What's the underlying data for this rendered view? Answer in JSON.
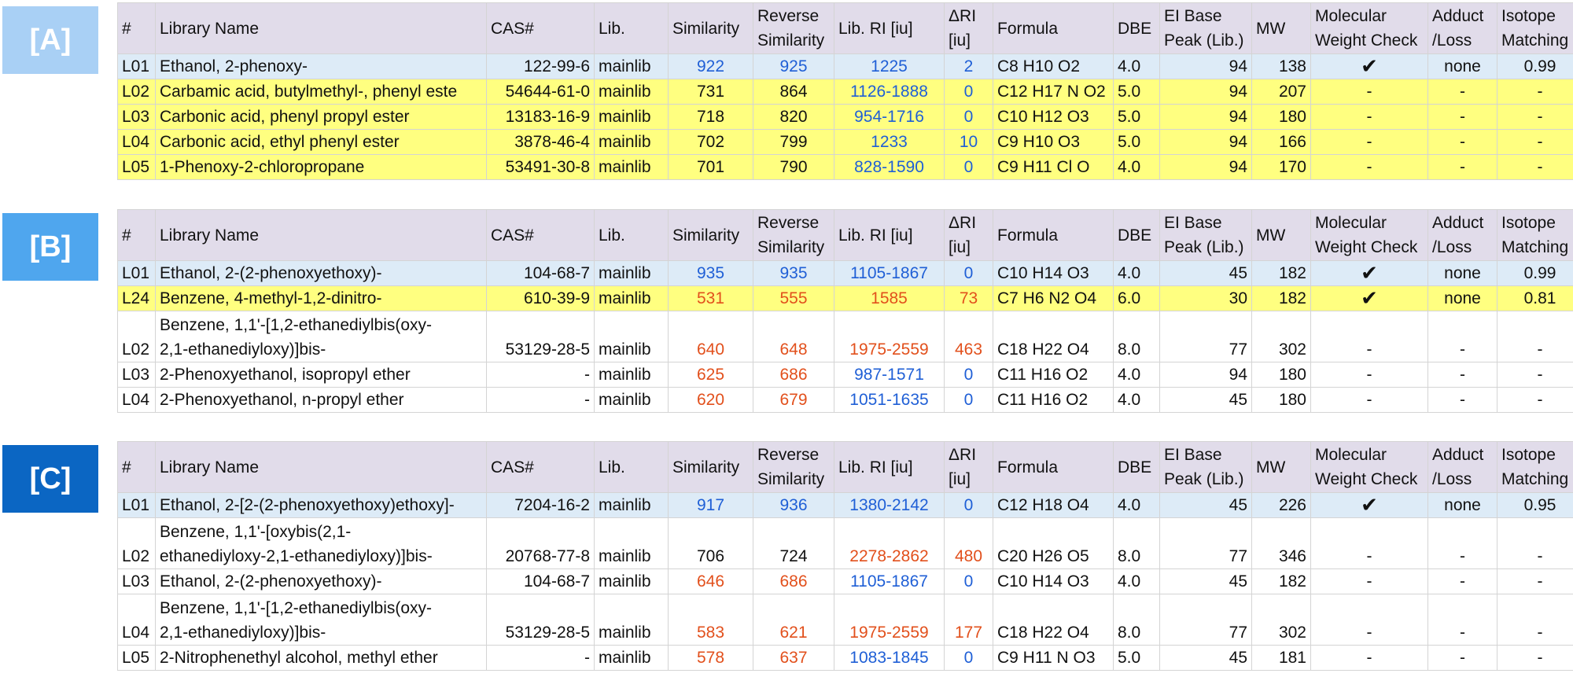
{
  "columns": [
    "#",
    "Library Name",
    "CAS#",
    "Lib.",
    "Similarity",
    "Reverse Similarity",
    "Lib. RI [iu]",
    "ΔRI [iu]",
    "Formula",
    "DBE",
    "EI Base Peak (Lib.)",
    "MW",
    "Molecular Weight Check",
    "Adduct /Loss",
    "Isotope Matching"
  ],
  "colors": {
    "blue": "#1f5fd6",
    "red": "#e2501c",
    "header_bg": "#e1dcea",
    "row_blue": "#ddebf7",
    "row_yellow": "#ffff80",
    "label_A": "#a9d0f5",
    "label_B": "#4fa6ee",
    "label_C": "#0b66c3"
  },
  "panels": [
    {
      "label": "[A]",
      "rows": [
        {
          "id": "L01",
          "name": "Ethanol, 2-phenoxy-",
          "cas": "122-99-6",
          "lib": "mainlib",
          "sim": "922",
          "rsim": "925",
          "ri": "1225",
          "dri": "2",
          "formula": "C8 H10 O2",
          "dbe": "4.0",
          "peak": "94",
          "mw": "138",
          "mwcheck": "✔",
          "adduct": "none",
          "iso": "0.99",
          "row": "blue",
          "sim_c": "blue",
          "rsim_c": "blue",
          "ri_c": "blue",
          "dri_c": "blue"
        },
        {
          "id": "L02",
          "name": "Carbamic acid, butylmethyl-, phenyl este",
          "cas": "54644-61-0",
          "lib": "mainlib",
          "sim": "731",
          "rsim": "864",
          "ri": "1126-1888",
          "dri": "0",
          "formula": "C12 H17 N O2",
          "dbe": "5.0",
          "peak": "94",
          "mw": "207",
          "mwcheck": "-",
          "adduct": "-",
          "iso": "-",
          "row": "yellow",
          "sim_c": "",
          "rsim_c": "",
          "ri_c": "blue",
          "dri_c": "blue"
        },
        {
          "id": "L03",
          "name": "Carbonic acid, phenyl propyl ester",
          "cas": "13183-16-9",
          "lib": "mainlib",
          "sim": "718",
          "rsim": "820",
          "ri": "954-1716",
          "dri": "0",
          "formula": "C10 H12 O3",
          "dbe": "5.0",
          "peak": "94",
          "mw": "180",
          "mwcheck": "-",
          "adduct": "-",
          "iso": "-",
          "row": "yellow",
          "sim_c": "",
          "rsim_c": "",
          "ri_c": "blue",
          "dri_c": "blue"
        },
        {
          "id": "L04",
          "name": "Carbonic acid, ethyl phenyl ester",
          "cas": "3878-46-4",
          "lib": "mainlib",
          "sim": "702",
          "rsim": "799",
          "ri": "1233",
          "dri": "10",
          "formula": "C9 H10 O3",
          "dbe": "5.0",
          "peak": "94",
          "mw": "166",
          "mwcheck": "-",
          "adduct": "-",
          "iso": "-",
          "row": "yellow",
          "sim_c": "",
          "rsim_c": "",
          "ri_c": "blue",
          "dri_c": "blue"
        },
        {
          "id": "L05",
          "name": "1-Phenoxy-2-chloropropane",
          "cas": "53491-30-8",
          "lib": "mainlib",
          "sim": "701",
          "rsim": "790",
          "ri": "828-1590",
          "dri": "0",
          "formula": "C9 H11 Cl O",
          "dbe": "4.0",
          "peak": "94",
          "mw": "170",
          "mwcheck": "-",
          "adduct": "-",
          "iso": "-",
          "row": "yellow",
          "sim_c": "",
          "rsim_c": "",
          "ri_c": "blue",
          "dri_c": "blue"
        }
      ]
    },
    {
      "label": "[B]",
      "rows": [
        {
          "id": "L01",
          "name": "Ethanol, 2-(2-phenoxyethoxy)-",
          "cas": "104-68-7",
          "lib": "mainlib",
          "sim": "935",
          "rsim": "935",
          "ri": "1105-1867",
          "dri": "0",
          "formula": "C10 H14 O3",
          "dbe": "4.0",
          "peak": "45",
          "mw": "182",
          "mwcheck": "✔",
          "adduct": "none",
          "iso": "0.99",
          "row": "blue",
          "sim_c": "blue",
          "rsim_c": "blue",
          "ri_c": "blue",
          "dri_c": "blue"
        },
        {
          "id": "L24",
          "name": "Benzene, 4-methyl-1,2-dinitro-",
          "cas": "610-39-9",
          "lib": "mainlib",
          "sim": "531",
          "rsim": "555",
          "ri": "1585",
          "dri": "73",
          "formula": "C7 H6 N2 O4",
          "dbe": "6.0",
          "peak": "30",
          "mw": "182",
          "mwcheck": "✔",
          "adduct": "none",
          "iso": "0.81",
          "row": "yellow",
          "sim_c": "red",
          "rsim_c": "red",
          "ri_c": "red",
          "dri_c": "red"
        },
        {
          "id": "L02",
          "name": "Benzene, 1,1'-[1,2-ethanediylbis(oxy-2,1-ethanediyloxy)]bis-",
          "name1": "Benzene, 1,1'-[1,2-ethanediylbis(oxy-",
          "name2": "2,1-ethanediyloxy)]bis-",
          "cas": "53129-28-5",
          "lib": "mainlib",
          "sim": "640",
          "rsim": "648",
          "ri": "1975-2559",
          "dri": "463",
          "formula": "C18 H22 O4",
          "dbe": "8.0",
          "peak": "77",
          "mw": "302",
          "mwcheck": "-",
          "adduct": "-",
          "iso": "-",
          "row": "white",
          "sim_c": "red",
          "rsim_c": "red",
          "ri_c": "red",
          "dri_c": "red"
        },
        {
          "id": "L03",
          "name": "2-Phenoxyethanol, isopropyl ether",
          "cas": "-",
          "lib": "mainlib",
          "sim": "625",
          "rsim": "686",
          "ri": "987-1571",
          "dri": "0",
          "formula": "C11 H16 O2",
          "dbe": "4.0",
          "peak": "94",
          "mw": "180",
          "mwcheck": "-",
          "adduct": "-",
          "iso": "-",
          "row": "white",
          "sim_c": "red",
          "rsim_c": "red",
          "ri_c": "blue",
          "dri_c": "blue"
        },
        {
          "id": "L04",
          "name": "2-Phenoxyethanol, n-propyl ether",
          "cas": "-",
          "lib": "mainlib",
          "sim": "620",
          "rsim": "679",
          "ri": "1051-1635",
          "dri": "0",
          "formula": "C11 H16 O2",
          "dbe": "4.0",
          "peak": "45",
          "mw": "180",
          "mwcheck": "-",
          "adduct": "-",
          "iso": "-",
          "row": "white",
          "sim_c": "red",
          "rsim_c": "red",
          "ri_c": "blue",
          "dri_c": "blue"
        }
      ]
    },
    {
      "label": "[C]",
      "rows": [
        {
          "id": "L01",
          "name": "Ethanol, 2-[2-(2-phenoxyethoxy)ethoxy]-",
          "cas": "7204-16-2",
          "lib": "mainlib",
          "sim": "917",
          "rsim": "936",
          "ri": "1380-2142",
          "dri": "0",
          "formula": "C12 H18 O4",
          "dbe": "4.0",
          "peak": "45",
          "mw": "226",
          "mwcheck": "✔",
          "adduct": "none",
          "iso": "0.95",
          "row": "blue",
          "sim_c": "blue",
          "rsim_c": "blue",
          "ri_c": "blue",
          "dri_c": "blue"
        },
        {
          "id": "L02",
          "name": "Benzene, 1,1'-[oxybis(2,1-ethanediyloxy-2,1-ethanediyloxy)]bis-",
          "name1": "Benzene, 1,1'-[oxybis(2,1-",
          "name2": "ethanediyloxy-2,1-ethanediyloxy)]bis-",
          "cas": "20768-77-8",
          "lib": "mainlib",
          "sim": "706",
          "rsim": "724",
          "ri": "2278-2862",
          "dri": "480",
          "formula": "C20 H26 O5",
          "dbe": "8.0",
          "peak": "77",
          "mw": "346",
          "mwcheck": "-",
          "adduct": "-",
          "iso": "-",
          "row": "white",
          "sim_c": "",
          "rsim_c": "",
          "ri_c": "red",
          "dri_c": "red"
        },
        {
          "id": "L03",
          "name": "Ethanol, 2-(2-phenoxyethoxy)-",
          "cas": "104-68-7",
          "lib": "mainlib",
          "sim": "646",
          "rsim": "686",
          "ri": "1105-1867",
          "dri": "0",
          "formula": "C10 H14 O3",
          "dbe": "4.0",
          "peak": "45",
          "mw": "182",
          "mwcheck": "-",
          "adduct": "-",
          "iso": "-",
          "row": "white",
          "sim_c": "red",
          "rsim_c": "red",
          "ri_c": "blue",
          "dri_c": "blue"
        },
        {
          "id": "L04",
          "name": "Benzene, 1,1'-[1,2-ethanediylbis(oxy-2,1-ethanediyloxy)]bis-",
          "name1": "Benzene, 1,1'-[1,2-ethanediylbis(oxy-",
          "name2": "2,1-ethanediyloxy)]bis-",
          "cas": "53129-28-5",
          "lib": "mainlib",
          "sim": "583",
          "rsim": "621",
          "ri": "1975-2559",
          "dri": "177",
          "formula": "C18 H22 O4",
          "dbe": "8.0",
          "peak": "77",
          "mw": "302",
          "mwcheck": "-",
          "adduct": "-",
          "iso": "-",
          "row": "white",
          "sim_c": "red",
          "rsim_c": "red",
          "ri_c": "red",
          "dri_c": "red"
        },
        {
          "id": "L05",
          "name": "2-Nitrophenethyl alcohol, methyl ether",
          "cas": "-",
          "lib": "mainlib",
          "sim": "578",
          "rsim": "637",
          "ri": "1083-1845",
          "dri": "0",
          "formula": "C9 H11 N O3",
          "dbe": "5.0",
          "peak": "45",
          "mw": "181",
          "mwcheck": "-",
          "adduct": "-",
          "iso": "-",
          "row": "white",
          "sim_c": "red",
          "rsim_c": "red",
          "ri_c": "blue",
          "dri_c": "blue"
        }
      ]
    }
  ]
}
